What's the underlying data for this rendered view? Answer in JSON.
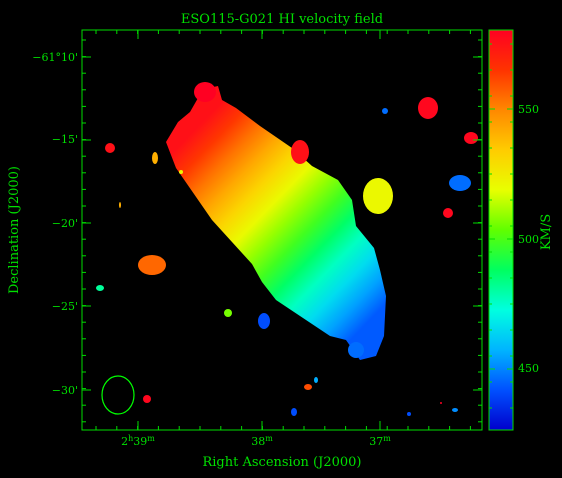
{
  "chart_data": {
    "type": "heatmap",
    "title": "ESO115-G021  HI velocity field",
    "xlabel": "Right Ascension (J2000)",
    "ylabel": "Declination (J2000)",
    "colorbar_label": "KM/S",
    "x_ticks": [
      {
        "h": "2",
        "hs": "h",
        "m": "39",
        "ms": "m"
      },
      {
        "m": "38",
        "ms": "m"
      },
      {
        "m": "37",
        "ms": "m"
      }
    ],
    "y_ticks": [
      "−61°10'",
      "−15'",
      "−20'",
      "−25'",
      "−30'"
    ],
    "colorbar_ticks": [
      "550",
      "500",
      "450"
    ],
    "colorbar_range": [
      425,
      580
    ],
    "galaxy_velocity_range": [
      442,
      575
    ],
    "colormap": [
      "#0000cc",
      "#0050ff",
      "#00b4ff",
      "#00ffe0",
      "#00ff60",
      "#60ff00",
      "#e8ff00",
      "#ffcc00",
      "#ff8800",
      "#ff3300",
      "#ff0022"
    ],
    "colors": {
      "frame": "#00dd00",
      "text": "#00e000",
      "background": "#000000",
      "beam": "#00ff00"
    },
    "clumps": [
      {
        "velocity": 580
      },
      {
        "velocity": 578
      },
      {
        "velocity": 445
      },
      {
        "velocity": 540
      },
      {
        "velocity": 578
      },
      {
        "velocity": 445
      },
      {
        "velocity": 555
      },
      {
        "velocity": 575
      },
      {
        "velocity": 520
      },
      {
        "velocity": 575
      },
      {
        "velocity": 505
      },
      {
        "velocity": 440
      },
      {
        "velocity": 578
      },
      {
        "velocity": 560
      },
      {
        "velocity": 480
      },
      {
        "velocity": 520
      },
      {
        "velocity": 440
      },
      {
        "velocity": 578
      },
      {
        "velocity": 540
      },
      {
        "velocity": 445
      },
      {
        "velocity": 440
      },
      {
        "velocity": 450
      },
      {
        "velocity": 580
      },
      {
        "velocity": 455
      }
    ]
  }
}
